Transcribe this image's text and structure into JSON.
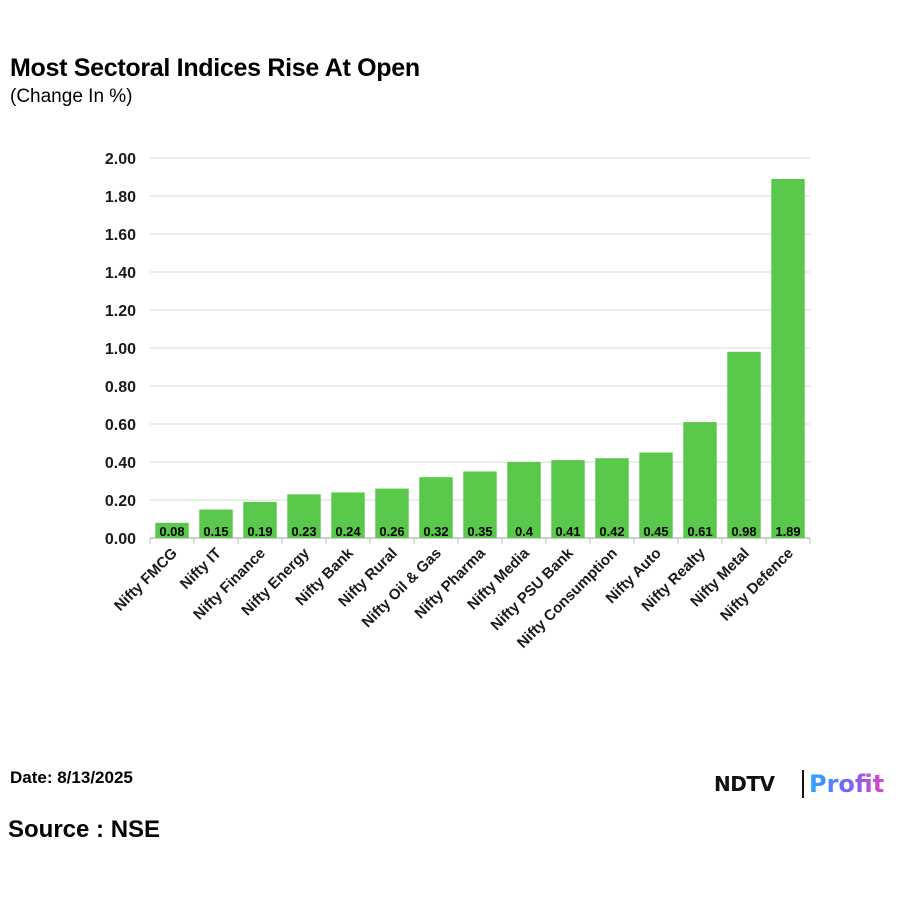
{
  "header": {
    "title": "Most Sectoral Indices Rise At Open",
    "subtitle": "(Change In %)"
  },
  "footer": {
    "date": "Date: 8/13/2025",
    "source": "Source : NSE",
    "logo_ndtv": "NDTV",
    "logo_profit": "Profit"
  },
  "colors": {
    "bar": "#5ac84a",
    "grid": "#d9d9d9",
    "axis": "#bfbfbf"
  },
  "chart_data": {
    "type": "bar",
    "title": "Most Sectoral Indices Rise At Open",
    "subtitle": "(Change In %)",
    "categories": [
      "Nifty FMCG",
      "Nifty IT",
      "Nifty Finance",
      "Nifty Energy",
      "Nifty Bank",
      "Nifty Rural",
      "Nifty Oil & Gas",
      "Nifty Pharma",
      "Nifty Media",
      "Nifty PSU Bank",
      "Nifty Consumption",
      "Nifty Auto",
      "Nifty Realty",
      "Nifty Metal",
      "Nifty Defence"
    ],
    "values": [
      0.08,
      0.15,
      0.19,
      0.23,
      0.24,
      0.26,
      0.32,
      0.35,
      0.4,
      0.41,
      0.42,
      0.45,
      0.61,
      0.98,
      1.89
    ],
    "value_labels": [
      "0.08",
      "0.15",
      "0.19",
      "0.23",
      "0.24",
      "0.26",
      "0.32",
      "0.35",
      "0.4",
      "0.41",
      "0.42",
      "0.45",
      "0.61",
      "0.98",
      "1.89"
    ],
    "yticks": [
      "0.00",
      "0.20",
      "0.40",
      "0.60",
      "0.80",
      "1.00",
      "1.20",
      "1.40",
      "1.60",
      "1.80",
      "2.00"
    ],
    "ylim": [
      0,
      2
    ],
    "grid": true,
    "legend": "none"
  }
}
